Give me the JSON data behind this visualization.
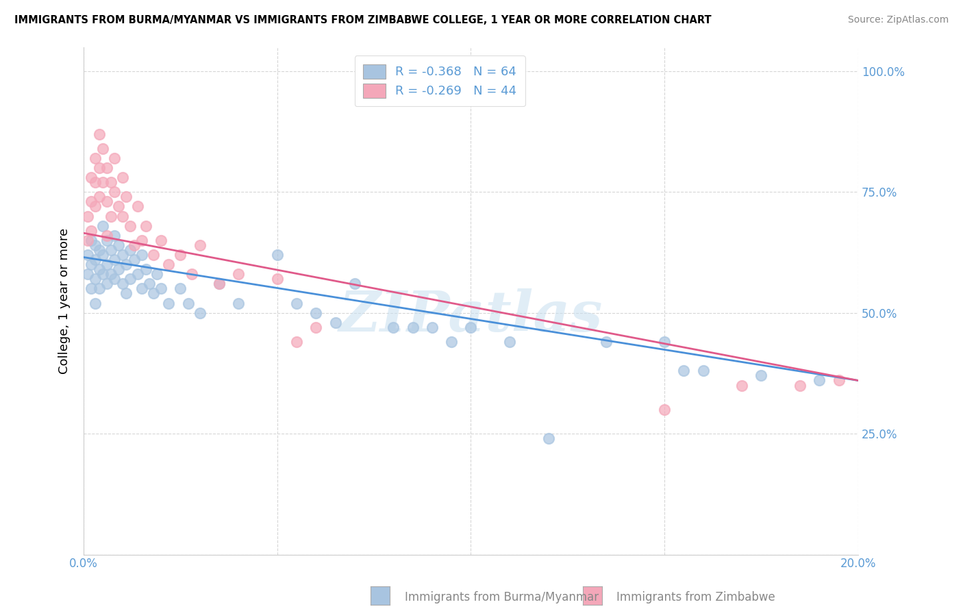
{
  "title": "IMMIGRANTS FROM BURMA/MYANMAR VS IMMIGRANTS FROM ZIMBABWE COLLEGE, 1 YEAR OR MORE CORRELATION CHART",
  "source": "Source: ZipAtlas.com",
  "ylabel": "College, 1 year or more",
  "xlim": [
    0.0,
    0.2
  ],
  "ylim": [
    0.0,
    1.05
  ],
  "x_ticks": [
    0.0,
    0.05,
    0.1,
    0.15,
    0.2
  ],
  "x_tick_labels": [
    "0.0%",
    "",
    "",
    "",
    "20.0%"
  ],
  "y_ticks_right": [
    0.25,
    0.5,
    0.75,
    1.0
  ],
  "y_tick_labels_right": [
    "25.0%",
    "50.0%",
    "75.0%",
    "100.0%"
  ],
  "blue_color": "#a8c4e0",
  "pink_color": "#f4a7b9",
  "blue_line_color": "#4a90d9",
  "pink_line_color": "#e05a8a",
  "watermark": "ZIPatlas",
  "blue_scatter_x": [
    0.001,
    0.001,
    0.002,
    0.002,
    0.002,
    0.003,
    0.003,
    0.003,
    0.003,
    0.004,
    0.004,
    0.004,
    0.005,
    0.005,
    0.005,
    0.006,
    0.006,
    0.006,
    0.007,
    0.007,
    0.008,
    0.008,
    0.008,
    0.009,
    0.009,
    0.01,
    0.01,
    0.011,
    0.011,
    0.012,
    0.012,
    0.013,
    0.014,
    0.015,
    0.015,
    0.016,
    0.017,
    0.018,
    0.019,
    0.02,
    0.022,
    0.025,
    0.027,
    0.03,
    0.035,
    0.04,
    0.05,
    0.055,
    0.06,
    0.065,
    0.07,
    0.08,
    0.085,
    0.09,
    0.095,
    0.1,
    0.11,
    0.12,
    0.135,
    0.15,
    0.155,
    0.16,
    0.175,
    0.19
  ],
  "blue_scatter_y": [
    0.62,
    0.58,
    0.65,
    0.6,
    0.55,
    0.64,
    0.61,
    0.57,
    0.52,
    0.63,
    0.59,
    0.55,
    0.68,
    0.62,
    0.58,
    0.65,
    0.6,
    0.56,
    0.63,
    0.58,
    0.66,
    0.61,
    0.57,
    0.64,
    0.59,
    0.62,
    0.56,
    0.6,
    0.54,
    0.63,
    0.57,
    0.61,
    0.58,
    0.62,
    0.55,
    0.59,
    0.56,
    0.54,
    0.58,
    0.55,
    0.52,
    0.55,
    0.52,
    0.5,
    0.56,
    0.52,
    0.62,
    0.52,
    0.5,
    0.48,
    0.56,
    0.47,
    0.47,
    0.47,
    0.44,
    0.47,
    0.44,
    0.24,
    0.44,
    0.44,
    0.38,
    0.38,
    0.37,
    0.36
  ],
  "pink_scatter_x": [
    0.001,
    0.001,
    0.002,
    0.002,
    0.002,
    0.003,
    0.003,
    0.003,
    0.004,
    0.004,
    0.004,
    0.005,
    0.005,
    0.006,
    0.006,
    0.006,
    0.007,
    0.007,
    0.008,
    0.008,
    0.009,
    0.01,
    0.01,
    0.011,
    0.012,
    0.013,
    0.014,
    0.015,
    0.016,
    0.018,
    0.02,
    0.022,
    0.025,
    0.028,
    0.03,
    0.035,
    0.04,
    0.05,
    0.055,
    0.06,
    0.15,
    0.17,
    0.185,
    0.195
  ],
  "pink_scatter_y": [
    0.7,
    0.65,
    0.78,
    0.73,
    0.67,
    0.82,
    0.77,
    0.72,
    0.87,
    0.8,
    0.74,
    0.84,
    0.77,
    0.8,
    0.73,
    0.66,
    0.77,
    0.7,
    0.82,
    0.75,
    0.72,
    0.78,
    0.7,
    0.74,
    0.68,
    0.64,
    0.72,
    0.65,
    0.68,
    0.62,
    0.65,
    0.6,
    0.62,
    0.58,
    0.64,
    0.56,
    0.58,
    0.57,
    0.44,
    0.47,
    0.3,
    0.35,
    0.35,
    0.36
  ],
  "blue_line_x0": 0.0,
  "blue_line_y0": 0.615,
  "blue_line_x1": 0.2,
  "blue_line_y1": 0.36,
  "pink_line_x0": 0.0,
  "pink_line_y0": 0.665,
  "pink_line_x1": 0.2,
  "pink_line_y1": 0.36
}
